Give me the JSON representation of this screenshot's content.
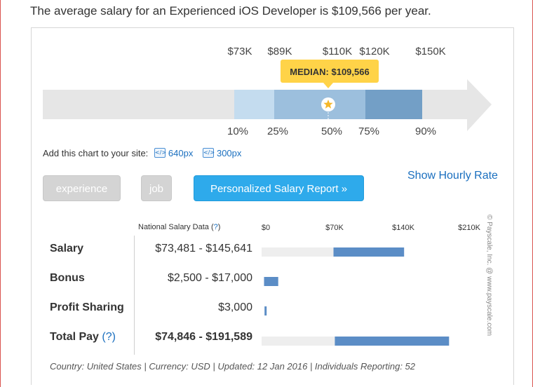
{
  "headline": "The average salary for an Experienced iOS Developer is $109,566 per year.",
  "chart_data": [
    {
      "type": "percentile-range",
      "price_labels": [
        "$73K",
        "$89K",
        "$110K",
        "$120K",
        "$150K"
      ],
      "percentile_labels": [
        "10%",
        "25%",
        "50%",
        "75%",
        "90%"
      ],
      "percentiles": [
        {
          "p": 10,
          "value": 73
        },
        {
          "p": 25,
          "value": 89
        },
        {
          "p": 50,
          "value": 110
        },
        {
          "p": 75,
          "value": 120
        },
        {
          "p": 90,
          "value": 150
        }
      ],
      "median_label": "MEDIAN: $109,566",
      "median_value": 109566,
      "colors": {
        "arrow": "#e6e6e6",
        "band_10_25": "#c4dcef",
        "band_25_75": "#9cbfdd",
        "band_75_90": "#739fc6",
        "median_badge": "#ffd348",
        "median_star": "#f5b72a"
      }
    },
    {
      "type": "bar",
      "axis_labels": [
        "$0",
        "$70K",
        "$140K",
        "$210K"
      ],
      "xlim": [
        0,
        210000
      ],
      "series": [
        {
          "category": "Salary",
          "min": 73481,
          "max": 145641
        },
        {
          "category": "Bonus",
          "min": 2500,
          "max": 17000
        },
        {
          "category": "Profit Sharing",
          "min": 3000,
          "max": 3000
        },
        {
          "category": "Total Pay",
          "min": 74846,
          "max": 191589
        }
      ],
      "colors": {
        "track": "#eeeeee",
        "bar": "#5b8dc6"
      }
    }
  ],
  "embed": {
    "label": "Add this chart to your site:",
    "link_640": "640px",
    "link_300": "300px"
  },
  "buttons": {
    "experience": "experience",
    "job": "job",
    "report": "Personalized Salary Report »"
  },
  "hourly_link": "Show Hourly Rate",
  "table": {
    "header": "National Salary Data (",
    "header_q": "?",
    "header_close": ")",
    "rows": [
      {
        "label": "Salary",
        "range": "$73,481 - $145,641",
        "bold_range": false
      },
      {
        "label": "Bonus",
        "range": "$2,500 - $17,000",
        "bold_range": false
      },
      {
        "label": "Profit Sharing",
        "range": "$3,000",
        "bold_range": false
      },
      {
        "label": "Total Pay",
        "label_q": "(?)",
        "range": "$74,846 - $191,589",
        "bold_range": true
      }
    ]
  },
  "footer": "Country: United States | Currency: USD | Updated: 12 Jan 2016 | Individuals Reporting: 52",
  "copyright": "© Payscale, Inc. @ www.payscale.com"
}
